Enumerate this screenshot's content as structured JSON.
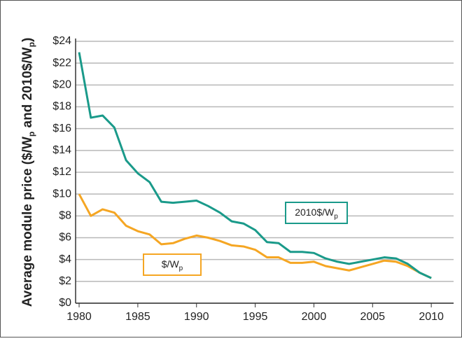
{
  "chart_data": {
    "type": "line",
    "y_label": [
      "Average module price ($/W",
      "p",
      " and 2010$/W",
      "p",
      ")"
    ],
    "x": [
      1980,
      1981,
      1982,
      1983,
      1984,
      1985,
      1986,
      1987,
      1988,
      1989,
      1990,
      1991,
      1992,
      1993,
      1994,
      1995,
      1996,
      1997,
      1998,
      1999,
      2000,
      2001,
      2002,
      2003,
      2004,
      2005,
      2006,
      2007,
      2008,
      2009,
      2010
    ],
    "series": [
      {
        "name": "2010$/W",
        "name_sub": "p",
        "color": "#1a9a8a",
        "values": [
          23,
          17.0,
          17.2,
          16.1,
          13.1,
          11.9,
          11.1,
          9.3,
          9.2,
          9.3,
          9.4,
          8.9,
          8.3,
          7.5,
          7.3,
          6.7,
          5.6,
          5.5,
          4.7,
          4.7,
          4.6,
          4.1,
          3.8,
          3.6,
          3.8,
          4.0,
          4.2,
          4.1,
          3.6,
          2.8,
          2.3
        ]
      },
      {
        "name": "$/W",
        "name_sub": "p",
        "color": "#f5a623",
        "values": [
          10.0,
          8.0,
          8.6,
          8.3,
          7.1,
          6.6,
          6.3,
          5.4,
          5.5,
          5.9,
          6.2,
          6.0,
          5.7,
          5.3,
          5.2,
          4.9,
          4.2,
          4.2,
          3.7,
          3.7,
          3.8,
          3.4,
          3.2,
          3.0,
          3.3,
          3.6,
          3.9,
          3.8,
          3.4,
          2.8,
          2.3
        ]
      }
    ],
    "xlim": [
      1979.7,
      2011.9
    ],
    "xticks": [
      1980,
      1985,
      1990,
      1995,
      2000,
      2005,
      2010
    ],
    "ylim": [
      0,
      24
    ],
    "yticks": [
      {
        "value": 0,
        "label": "$0"
      },
      {
        "value": 2,
        "label": "$2"
      },
      {
        "value": 4,
        "label": "$4"
      },
      {
        "value": 6,
        "label": "$6"
      },
      {
        "value": 8,
        "label": "$8"
      },
      {
        "value": 10,
        "label": "$10"
      },
      {
        "value": 12,
        "label": "$12"
      },
      {
        "value": 14,
        "label": "$14"
      },
      {
        "value": 16,
        "label": "$16"
      },
      {
        "value": 18,
        "label": "$18"
      },
      {
        "value": 20,
        "label": "$20"
      },
      {
        "value": 22,
        "label": "$22"
      },
      {
        "value": 24,
        "label": "$24"
      }
    ],
    "grid": true
  }
}
